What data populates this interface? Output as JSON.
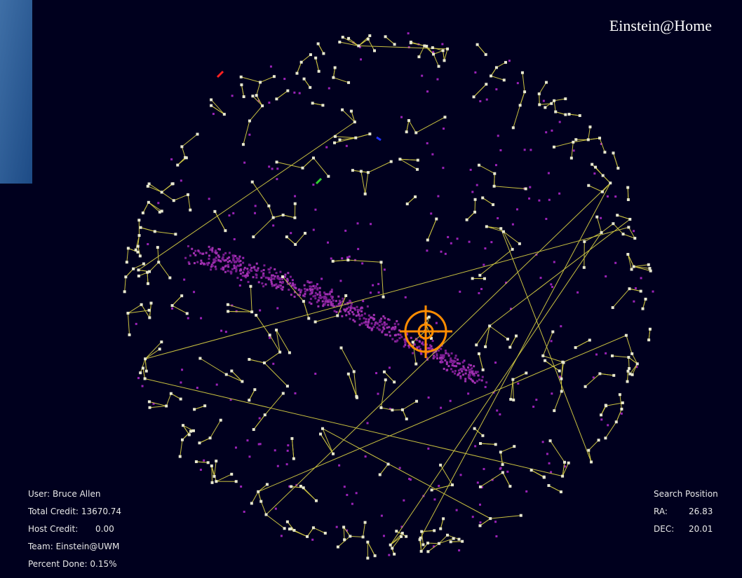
{
  "header": {
    "title": "Einstein@Home"
  },
  "user_info": [
    {
      "label": "User:",
      "value": "Bruce Allen"
    },
    {
      "label": "Total Credit:",
      "value": "13670.74"
    },
    {
      "label": "Host Credit:",
      "value": "0.00"
    },
    {
      "label": "Team:",
      "value": "Einstein@UWM"
    },
    {
      "label": "Percent Done:",
      "value": "0.15%"
    }
  ],
  "search_position": {
    "title": "Search Position",
    "rows": [
      {
        "label": "RA:",
        "value": "26.83"
      },
      {
        "label": "DEC:",
        "value": "20.01"
      }
    ]
  }
}
